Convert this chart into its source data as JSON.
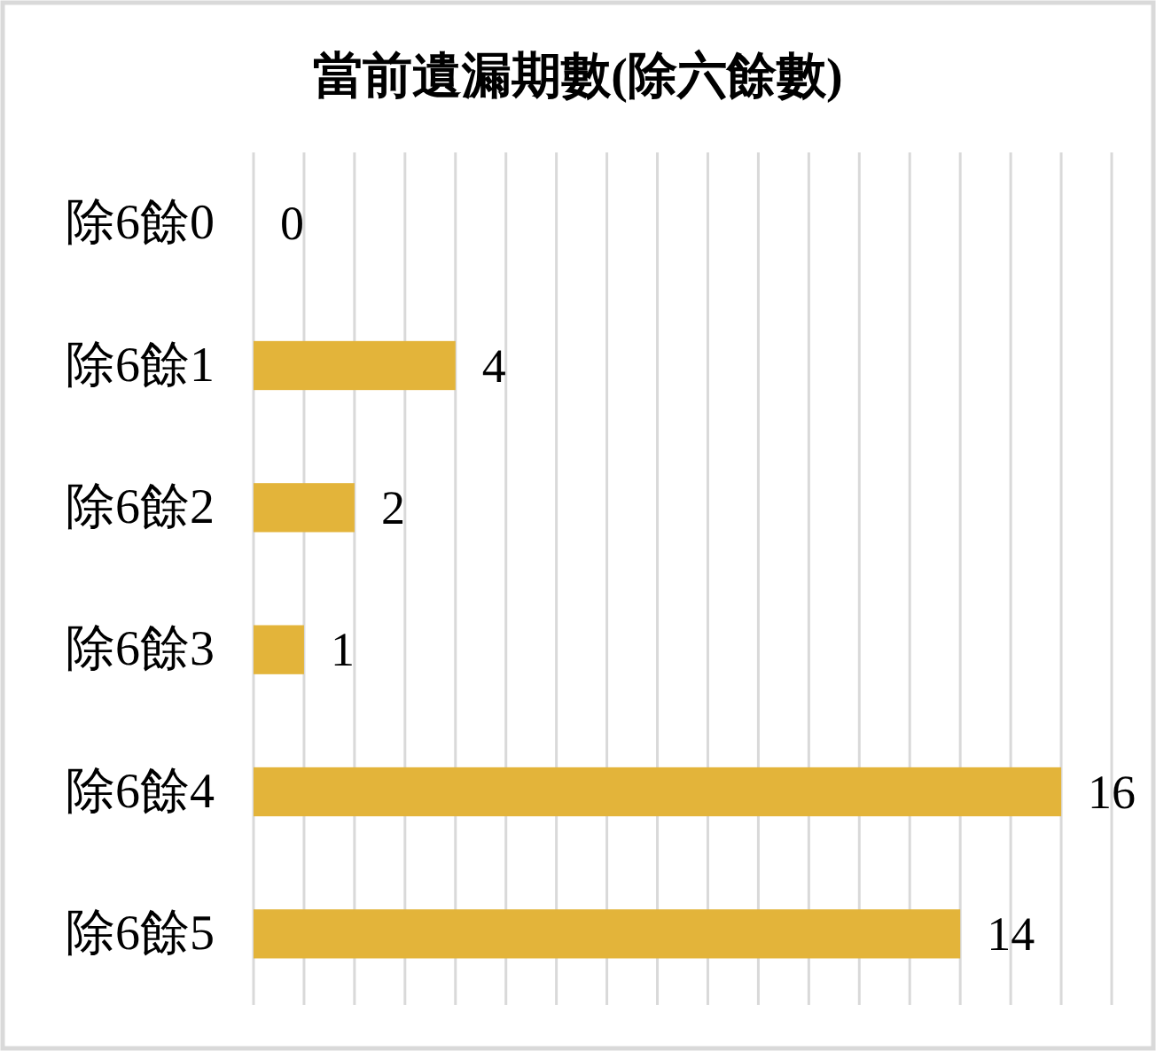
{
  "chart_data": {
    "type": "bar",
    "orientation": "horizontal",
    "title": "當前遺漏期數(除六餘數)",
    "categories": [
      "除6餘0",
      "除6餘1",
      "除6餘2",
      "除6餘3",
      "除6餘4",
      "除6餘5"
    ],
    "values": [
      0,
      4,
      2,
      1,
      16,
      14
    ],
    "color": "#e3b43a",
    "xlim": [
      0,
      17
    ],
    "xticks": [
      0,
      1,
      2,
      3,
      4,
      5,
      6,
      7,
      8,
      9,
      10,
      11,
      12,
      13,
      14,
      15,
      16,
      17
    ],
    "tick_labels": "y",
    "grid": "x",
    "data_labels": true
  }
}
